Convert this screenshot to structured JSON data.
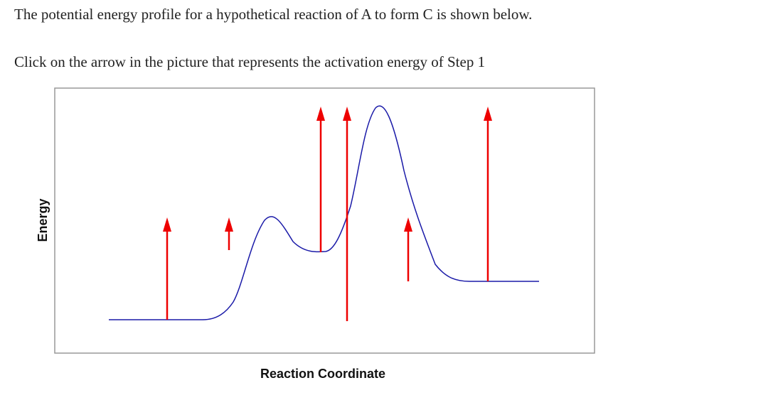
{
  "question": {
    "intro": "The potential energy profile for a hypothetical reaction of A to form C is shown below.",
    "prompt": "Click on the arrow in the picture that represents the activation energy of Step 1"
  },
  "figure": {
    "xlabel": "Reaction Coordinate",
    "ylabel": "Energy"
  },
  "colors": {
    "curve": "#1a1aa8",
    "arrow": "#ee0000",
    "frame": "#999999"
  }
}
